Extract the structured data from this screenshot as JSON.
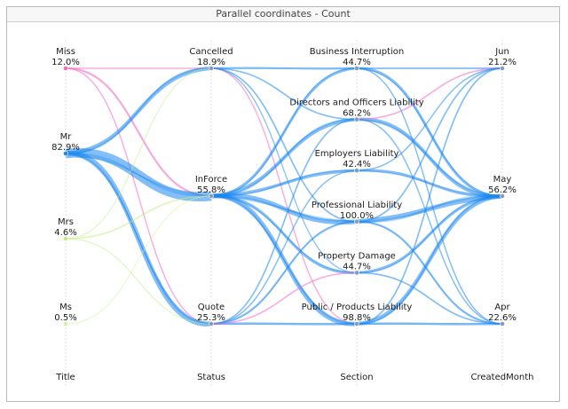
{
  "window": {
    "title": "Parallel coordinates - Count"
  },
  "chart_data": {
    "type": "parallel_coordinates",
    "title": "Parallel coordinates - Count",
    "dimensions": [
      {
        "name": "Title",
        "categories": [
          {
            "label": "Miss",
            "pct": "12.0%"
          },
          {
            "label": "Mr",
            "pct": "82.9%"
          },
          {
            "label": "Mrs",
            "pct": "4.6%"
          },
          {
            "label": "Ms",
            "pct": "0.5%"
          }
        ]
      },
      {
        "name": "Status",
        "categories": [
          {
            "label": "Cancelled",
            "pct": "18.9%"
          },
          {
            "label": "InForce",
            "pct": "55.8%"
          },
          {
            "label": "Quote",
            "pct": "25.3%"
          }
        ]
      },
      {
        "name": "Section",
        "categories": [
          {
            "label": "Business Interruption",
            "pct": "44.7%"
          },
          {
            "label": "Directors and Officers Liability",
            "pct": "68.2%"
          },
          {
            "label": "Employers Liability",
            "pct": "42.4%"
          },
          {
            "label": "Professional Liability",
            "pct": "100.0%"
          },
          {
            "label": "Property Damage",
            "pct": "44.7%"
          },
          {
            "label": "Public / Products Liability",
            "pct": "98.8%"
          }
        ]
      },
      {
        "name": "CreatedMonth",
        "categories": [
          {
            "label": "Jun",
            "pct": "21.2%"
          },
          {
            "label": "May",
            "pct": "56.2%"
          },
          {
            "label": "Apr",
            "pct": "22.6%"
          }
        ]
      }
    ],
    "colors": {
      "Miss": "#f06ec4",
      "Mr": "#1e88f0",
      "Mrs": "#b9ef7e",
      "Ms": "#cdf59f"
    },
    "flows": [
      {
        "from": [
          "Title",
          "Miss"
        ],
        "to": [
          "Status",
          "Cancelled"
        ],
        "value": 3,
        "color_by": "Miss"
      },
      {
        "from": [
          "Title",
          "Miss"
        ],
        "to": [
          "Status",
          "InForce"
        ],
        "value": 6,
        "color_by": "Miss"
      },
      {
        "from": [
          "Title",
          "Miss"
        ],
        "to": [
          "Status",
          "Quote"
        ],
        "value": 3,
        "color_by": "Miss"
      },
      {
        "from": [
          "Title",
          "Mr"
        ],
        "to": [
          "Status",
          "Cancelled"
        ],
        "value": 16,
        "color_by": "Mr"
      },
      {
        "from": [
          "Title",
          "Mr"
        ],
        "to": [
          "Status",
          "InForce"
        ],
        "value": 45,
        "color_by": "Mr"
      },
      {
        "from": [
          "Title",
          "Mr"
        ],
        "to": [
          "Status",
          "Quote"
        ],
        "value": 22,
        "color_by": "Mr"
      },
      {
        "from": [
          "Title",
          "Mrs"
        ],
        "to": [
          "Status",
          "InForce"
        ],
        "value": 3,
        "color_by": "Mrs"
      },
      {
        "from": [
          "Title",
          "Mrs"
        ],
        "to": [
          "Status",
          "Quote"
        ],
        "value": 1,
        "color_by": "Mrs"
      },
      {
        "from": [
          "Title",
          "Mrs"
        ],
        "to": [
          "Status",
          "Cancelled"
        ],
        "value": 1,
        "color_by": "Mrs"
      },
      {
        "from": [
          "Title",
          "Ms"
        ],
        "to": [
          "Status",
          "InForce"
        ],
        "value": 1,
        "color_by": "Ms"
      },
      {
        "from": [
          "Status",
          "Cancelled"
        ],
        "to": [
          "Section",
          "Business Interruption"
        ],
        "value": 6,
        "color_by": "Mr"
      },
      {
        "from": [
          "Status",
          "Cancelled"
        ],
        "to": [
          "Section",
          "Directors and Officers Liability"
        ],
        "value": 4,
        "color_by": "Mr"
      },
      {
        "from": [
          "Status",
          "Cancelled"
        ],
        "to": [
          "Section",
          "Professional Liability"
        ],
        "value": 4,
        "color_by": "Mr"
      },
      {
        "from": [
          "Status",
          "Cancelled"
        ],
        "to": [
          "Section",
          "Public / Products Liability"
        ],
        "value": 3,
        "color_by": "Miss"
      },
      {
        "from": [
          "Status",
          "Cancelled"
        ],
        "to": [
          "Section",
          "Property Damage"
        ],
        "value": 2,
        "color_by": "Mr"
      },
      {
        "from": [
          "Status",
          "InForce"
        ],
        "to": [
          "Section",
          "Business Interruption"
        ],
        "value": 10,
        "color_by": "Mr"
      },
      {
        "from": [
          "Status",
          "InForce"
        ],
        "to": [
          "Section",
          "Directors and Officers Liability"
        ],
        "value": 14,
        "color_by": "Mr"
      },
      {
        "from": [
          "Status",
          "InForce"
        ],
        "to": [
          "Section",
          "Employers Liability"
        ],
        "value": 12,
        "color_by": "Mr"
      },
      {
        "from": [
          "Status",
          "InForce"
        ],
        "to": [
          "Section",
          "Professional Liability"
        ],
        "value": 20,
        "color_by": "Mr"
      },
      {
        "from": [
          "Status",
          "InForce"
        ],
        "to": [
          "Section",
          "Property Damage"
        ],
        "value": 10,
        "color_by": "Mr"
      },
      {
        "from": [
          "Status",
          "InForce"
        ],
        "to": [
          "Section",
          "Public / Products Liability"
        ],
        "value": 18,
        "color_by": "Mr"
      },
      {
        "from": [
          "Status",
          "Quote"
        ],
        "to": [
          "Section",
          "Directors and Officers Liability"
        ],
        "value": 4,
        "color_by": "Mr"
      },
      {
        "from": [
          "Status",
          "Quote"
        ],
        "to": [
          "Section",
          "Employers Liability"
        ],
        "value": 3,
        "color_by": "Mr"
      },
      {
        "from": [
          "Status",
          "Quote"
        ],
        "to": [
          "Section",
          "Professional Liability"
        ],
        "value": 6,
        "color_by": "Mr"
      },
      {
        "from": [
          "Status",
          "Quote"
        ],
        "to": [
          "Section",
          "Public / Products Liability"
        ],
        "value": 8,
        "color_by": "Mr"
      },
      {
        "from": [
          "Status",
          "Quote"
        ],
        "to": [
          "Section",
          "Property Damage"
        ],
        "value": 4,
        "color_by": "Miss"
      },
      {
        "from": [
          "Section",
          "Business Interruption"
        ],
        "to": [
          "CreatedMonth",
          "Jun"
        ],
        "value": 4,
        "color_by": "Mr"
      },
      {
        "from": [
          "Section",
          "Business Interruption"
        ],
        "to": [
          "CreatedMonth",
          "May"
        ],
        "value": 10,
        "color_by": "Mr"
      },
      {
        "from": [
          "Section",
          "Business Interruption"
        ],
        "to": [
          "CreatedMonth",
          "Apr"
        ],
        "value": 3,
        "color_by": "Mr"
      },
      {
        "from": [
          "Section",
          "Directors and Officers Liability"
        ],
        "to": [
          "CreatedMonth",
          "May"
        ],
        "value": 14,
        "color_by": "Mr"
      },
      {
        "from": [
          "Section",
          "Directors and Officers Liability"
        ],
        "to": [
          "CreatedMonth",
          "Jun"
        ],
        "value": 4,
        "color_by": "Miss"
      },
      {
        "from": [
          "Section",
          "Directors and Officers Liability"
        ],
        "to": [
          "CreatedMonth",
          "Apr"
        ],
        "value": 3,
        "color_by": "Mr"
      },
      {
        "from": [
          "Section",
          "Employers Liability"
        ],
        "to": [
          "CreatedMonth",
          "May"
        ],
        "value": 10,
        "color_by": "Mr"
      },
      {
        "from": [
          "Section",
          "Employers Liability"
        ],
        "to": [
          "CreatedMonth",
          "Jun"
        ],
        "value": 3,
        "color_by": "Mr"
      },
      {
        "from": [
          "Section",
          "Professional Liability"
        ],
        "to": [
          "CreatedMonth",
          "May"
        ],
        "value": 20,
        "color_by": "Mr"
      },
      {
        "from": [
          "Section",
          "Professional Liability"
        ],
        "to": [
          "CreatedMonth",
          "Apr"
        ],
        "value": 6,
        "color_by": "Mr"
      },
      {
        "from": [
          "Section",
          "Professional Liability"
        ],
        "to": [
          "CreatedMonth",
          "Jun"
        ],
        "value": 4,
        "color_by": "Mr"
      },
      {
        "from": [
          "Section",
          "Property Damage"
        ],
        "to": [
          "CreatedMonth",
          "May"
        ],
        "value": 10,
        "color_by": "Mr"
      },
      {
        "from": [
          "Section",
          "Property Damage"
        ],
        "to": [
          "CreatedMonth",
          "Apr"
        ],
        "value": 4,
        "color_by": "Mr"
      },
      {
        "from": [
          "Section",
          "Public / Products Liability"
        ],
        "to": [
          "CreatedMonth",
          "May"
        ],
        "value": 16,
        "color_by": "Mr"
      },
      {
        "from": [
          "Section",
          "Public / Products Liability"
        ],
        "to": [
          "CreatedMonth",
          "Apr"
        ],
        "value": 8,
        "color_by": "Mr"
      },
      {
        "from": [
          "Section",
          "Public / Products Liability"
        ],
        "to": [
          "CreatedMonth",
          "Jun"
        ],
        "value": 4,
        "color_by": "Mr"
      }
    ]
  }
}
